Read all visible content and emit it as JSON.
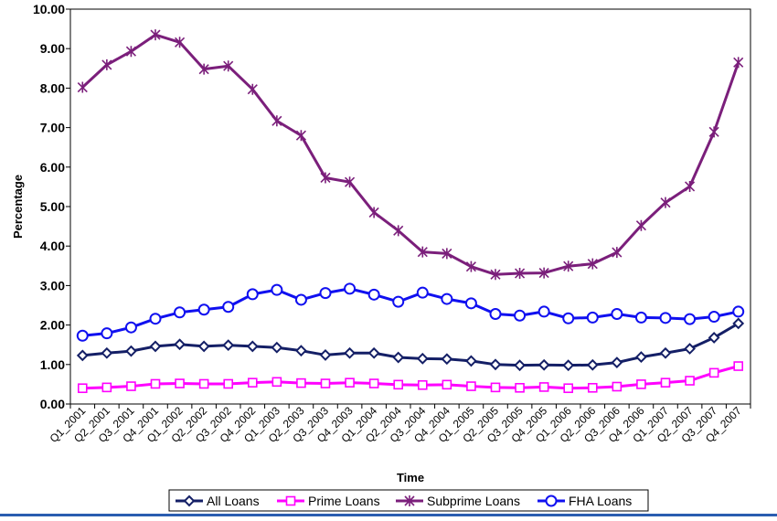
{
  "chart_data": {
    "type": "line",
    "title": "",
    "xlabel": "Time",
    "ylabel": "Percentage",
    "ylim": [
      0,
      10
    ],
    "yticks": [
      "0.00",
      "1.00",
      "2.00",
      "3.00",
      "4.00",
      "5.00",
      "6.00",
      "7.00",
      "8.00",
      "9.00",
      "10.00"
    ],
    "grid": false,
    "legend_position": "bottom",
    "x": [
      "Q1_2001",
      "Q2_2001",
      "Q3_2001",
      "Q4_2001",
      "Q1_2002",
      "Q2_2002",
      "Q3_2002",
      "Q4_2002",
      "Q1_2003",
      "Q2_2003",
      "Q3_2003",
      "Q4_2003",
      "Q1_2004",
      "Q2_2004",
      "Q3_2004",
      "Q4_2004",
      "Q1_2005",
      "Q2_2005",
      "Q3_2005",
      "Q4_2005",
      "Q1_2006",
      "Q2_2006",
      "Q3_2006",
      "Q4_2006",
      "Q1_2007",
      "Q2_2007",
      "Q3_2007",
      "Q4_2007"
    ],
    "series": [
      {
        "name": "All Loans",
        "color": "#141f66",
        "marker": "diamond",
        "values": [
          1.23,
          1.29,
          1.34,
          1.46,
          1.51,
          1.46,
          1.49,
          1.46,
          1.43,
          1.35,
          1.24,
          1.29,
          1.29,
          1.18,
          1.15,
          1.14,
          1.09,
          1.0,
          0.98,
          0.99,
          0.98,
          0.99,
          1.05,
          1.19,
          1.29,
          1.4,
          1.68,
          2.04
        ]
      },
      {
        "name": "Prime Loans",
        "color": "#ff00ff",
        "marker": "square",
        "values": [
          0.4,
          0.42,
          0.45,
          0.51,
          0.52,
          0.51,
          0.51,
          0.54,
          0.56,
          0.53,
          0.52,
          0.54,
          0.52,
          0.49,
          0.48,
          0.49,
          0.45,
          0.42,
          0.41,
          0.43,
          0.4,
          0.41,
          0.44,
          0.5,
          0.54,
          0.59,
          0.79,
          0.96
        ]
      },
      {
        "name": "Subprime Loans",
        "color": "#7b1f7b",
        "marker": "asterisk",
        "values": [
          8.02,
          8.59,
          8.93,
          9.35,
          9.16,
          8.48,
          8.56,
          7.97,
          7.17,
          6.8,
          5.73,
          5.62,
          4.85,
          4.39,
          3.85,
          3.81,
          3.48,
          3.28,
          3.31,
          3.32,
          3.49,
          3.55,
          3.84,
          4.52,
          5.1,
          5.51,
          6.89,
          8.65
        ]
      },
      {
        "name": "FHA Loans",
        "color": "#1010f0",
        "marker": "circle",
        "values": [
          1.73,
          1.79,
          1.94,
          2.16,
          2.32,
          2.39,
          2.46,
          2.78,
          2.89,
          2.64,
          2.81,
          2.92,
          2.77,
          2.59,
          2.82,
          2.66,
          2.55,
          2.28,
          2.24,
          2.34,
          2.17,
          2.19,
          2.28,
          2.19,
          2.18,
          2.15,
          2.21,
          2.34
        ]
      }
    ]
  }
}
